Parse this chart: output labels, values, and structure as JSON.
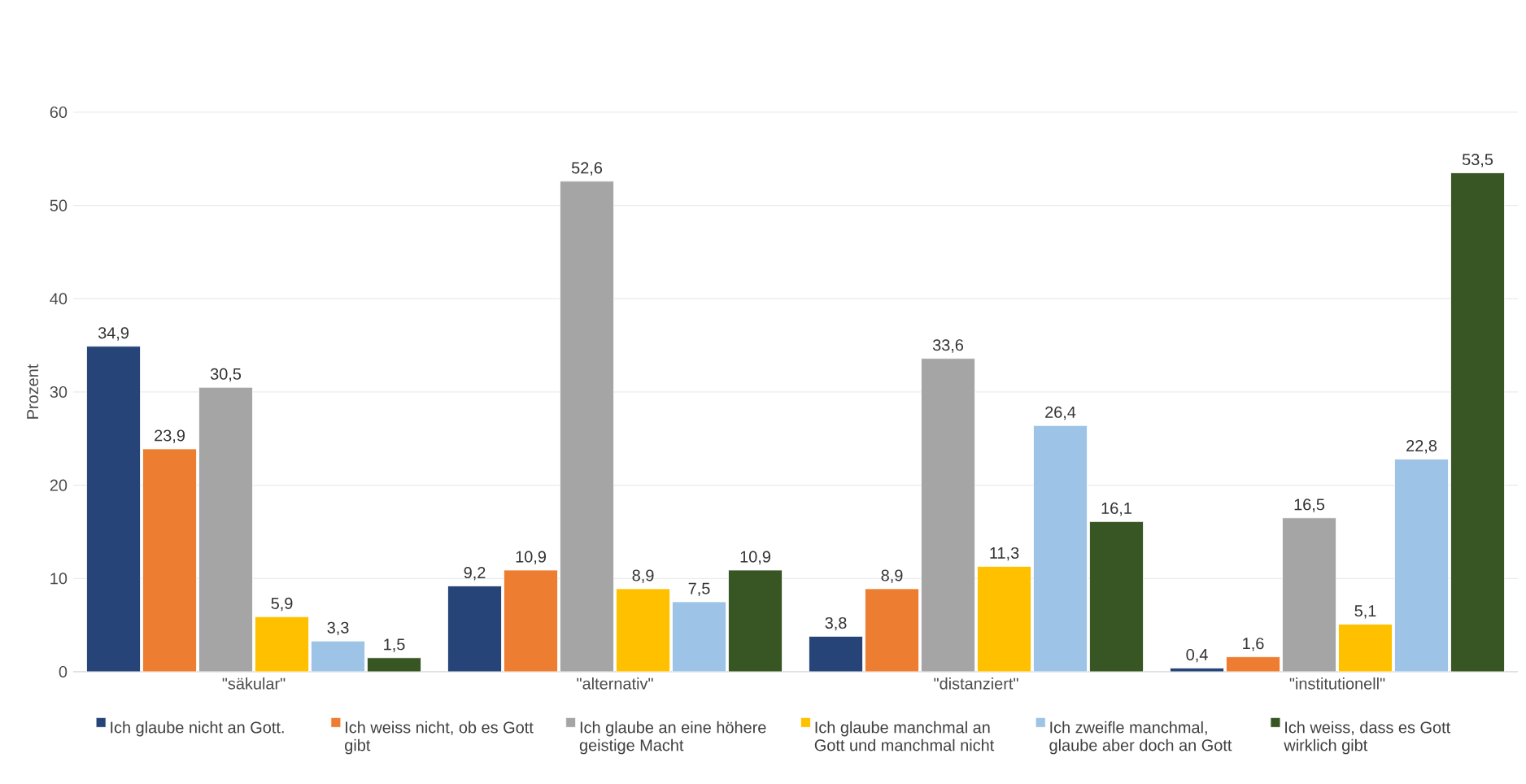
{
  "chart_data": {
    "type": "bar",
    "ylabel": "Prozent",
    "categories": [
      "\"säkular\"",
      "\"alternativ\"",
      "\"distanziert\"",
      "\"institutionell\""
    ],
    "ylim": [
      0,
      60
    ],
    "yticks": [
      0,
      10,
      20,
      30,
      40,
      50,
      60
    ],
    "grid": "y",
    "legend": "bottom",
    "series": [
      {
        "name": "Ich glaube nicht an Gott.",
        "color": "#264478",
        "values": [
          34.9,
          9.2,
          3.8,
          0.4
        ],
        "value_labels": [
          "34,9",
          "9,2",
          "3,8",
          "0,4"
        ]
      },
      {
        "name": "Ich weiss nicht, ob es Gott gibt",
        "color": "#ed7d31",
        "values": [
          23.9,
          10.9,
          8.9,
          1.6
        ],
        "value_labels": [
          "23,9",
          "10,9",
          "8,9",
          "1,6"
        ]
      },
      {
        "name": "Ich glaube an eine höhere geistige Macht",
        "color": "#a5a5a5",
        "values": [
          30.5,
          52.6,
          33.6,
          16.5
        ],
        "value_labels": [
          "30,5",
          "52,6",
          "33,6",
          "16,5"
        ]
      },
      {
        "name": "Ich glaube manchmal an Gott und manchmal nicht",
        "color": "#ffc000",
        "values": [
          5.9,
          8.9,
          11.3,
          5.1
        ],
        "value_labels": [
          "5,9",
          "8,9",
          "11,3",
          "5,1"
        ]
      },
      {
        "name": "Ich zweifle manchmal, glaube aber doch an Gott",
        "color": "#9dc3e6",
        "values": [
          3.3,
          7.5,
          26.4,
          22.8
        ],
        "value_labels": [
          "3,3",
          "7,5",
          "26,4",
          "22,8"
        ]
      },
      {
        "name": "Ich weiss, dass es Gott wirklich gibt",
        "color": "#375623",
        "values": [
          1.5,
          10.9,
          16.1,
          53.5
        ],
        "value_labels": [
          "1,5",
          "10,9",
          "16,1",
          "53,5"
        ]
      }
    ]
  }
}
